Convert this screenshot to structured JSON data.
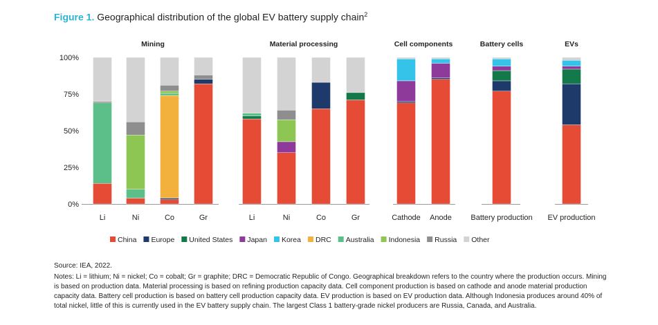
{
  "figure": {
    "label": "Figure 1.",
    "title": "Geographical distribution of the global EV battery supply chain",
    "footnote_ref": "2"
  },
  "chart_data": {
    "type": "stacked-bar",
    "ylim": [
      0,
      100
    ],
    "yticks": [
      "0%",
      "25%",
      "50%",
      "75%",
      "100%"
    ],
    "countries": [
      "China",
      "Europe",
      "United States",
      "Japan",
      "Korea",
      "DRC",
      "Australia",
      "Indonesia",
      "Russia",
      "Other"
    ],
    "colors": {
      "China": "#e64b35",
      "Europe": "#1d3a6b",
      "United States": "#13794a",
      "Japan": "#8e3a9a",
      "Korea": "#35c3ea",
      "DRC": "#f2b13c",
      "Australia": "#5cbf8a",
      "Indonesia": "#8dc653",
      "Russia": "#8e8e8e",
      "Other": "#d3d3d3"
    },
    "groups": [
      {
        "name": "Mining",
        "bars": [
          {
            "label": "Li",
            "segments": {
              "Australia": 55,
              "China": 14,
              "Russia": 1,
              "Other": 30
            }
          },
          {
            "label": "Ni",
            "segments": {
              "Indonesia": 37,
              "Australia": 6,
              "China": 4,
              "Russia": 9,
              "Other": 44
            }
          },
          {
            "label": "Co",
            "segments": {
              "DRC": 70,
              "Indonesia": 1.5,
              "Australia": 1.5,
              "China": 3,
              "Russia": 4,
              "Europe": 1,
              "Other": 19
            }
          },
          {
            "label": "Gr",
            "segments": {
              "China": 82,
              "Russia": 3,
              "Europe": 3,
              "Other": 12
            }
          }
        ]
      },
      {
        "name": "Material processing",
        "bars": [
          {
            "label": "Li",
            "segments": {
              "China": 58,
              "Australia": 2,
              "United States": 2,
              "Other": 38
            }
          },
          {
            "label": "Ni",
            "segments": {
              "Indonesia": 15,
              "China": 35,
              "Japan": 7.5,
              "Russia": 6.5,
              "Other": 36
            }
          },
          {
            "label": "Co",
            "segments": {
              "China": 65,
              "Europe": 18,
              "Other": 17
            }
          },
          {
            "label": "Gr",
            "segments": {
              "China": 71,
              "United States": 5,
              "Other": 24
            }
          }
        ]
      },
      {
        "name": "Cell components",
        "bars": [
          {
            "label": "Cathode",
            "segments": {
              "China": 69,
              "Europe": 1,
              "Japan": 14,
              "Korea": 15,
              "Other": 1
            }
          },
          {
            "label": "Anode",
            "segments": {
              "China": 85,
              "Europe": 1,
              "Japan": 10,
              "Korea": 3,
              "Other": 1
            }
          }
        ]
      },
      {
        "name": "Battery cells",
        "bars": [
          {
            "label": "Battery production",
            "segments": {
              "China": 77,
              "Europe": 7,
              "United States": 7,
              "Korea": 5,
              "Japan": 3,
              "Other": 1
            }
          }
        ]
      },
      {
        "name": "EVs",
        "bars": [
          {
            "label": "EV production",
            "segments": {
              "China": 54,
              "Europe": 28,
              "United States": 10,
              "Korea": 4,
              "Japan": 2,
              "Other": 2
            }
          }
        ]
      }
    ]
  },
  "notes": {
    "source": "Source: IEA, 2022.",
    "text": "Notes: Li = lithium; Ni = nickel; Co = cobalt; Gr = graphite; DRC = Democratic Republic of Congo. Geographical breakdown refers to the country where the production occurs. Mining is based on production data. Material processing is based on refining production capacity data. Cell component production is based on cathode and anode material production capacity data. Battery cell production is based on battery cell production capacity data. EV production is based on EV production data. Although Indonesia produces around 40% of total nickel, little of this is currently used in the EV battery supply chain. The largest Class 1 battery-grade nickel producers are Russia, Canada, and Australia."
  }
}
